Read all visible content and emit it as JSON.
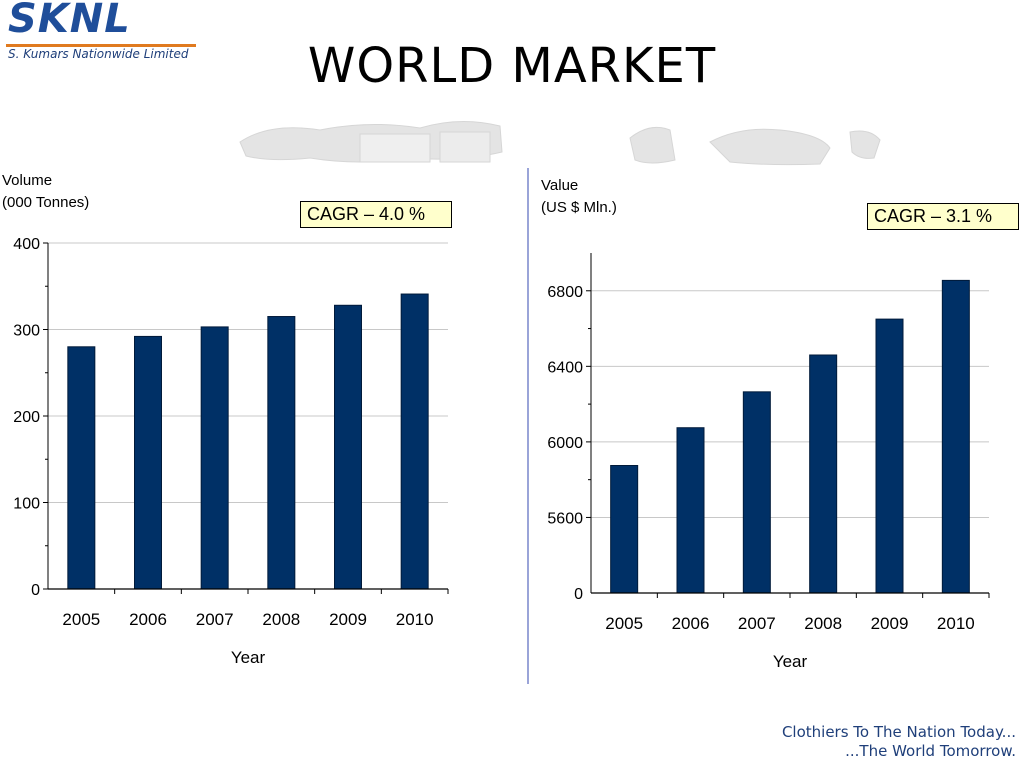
{
  "logo": {
    "text": "SKNL",
    "subtitle": "S. Kumars Nationwide Limited"
  },
  "page_title": "WORLD MARKET",
  "tagline": {
    "line1": "Clothiers To The Nation Today...",
    "line2": "...The World Tomorrow."
  },
  "colors": {
    "bar": "#003066",
    "grid": "#c8c8c8",
    "cagr_bg": "#ffffcc",
    "divider": "#9aa4d8",
    "brand": "#1f4e9a"
  },
  "chart_data": [
    {
      "type": "bar",
      "ylabel_line1": "Volume",
      "ylabel_line2": "(000 Tonnes)",
      "xlabel": "Year",
      "annotation": "CAGR – 4.0 %",
      "categories": [
        "2005",
        "2006",
        "2007",
        "2008",
        "2009",
        "2010"
      ],
      "values": [
        280,
        292,
        303,
        315,
        328,
        341
      ],
      "ylim": [
        0,
        400
      ],
      "yticks": [
        0,
        100,
        200,
        300,
        400
      ],
      "grid": true
    },
    {
      "type": "bar",
      "ylabel_line1": "Value",
      "ylabel_line2": "(US $ Mln.)",
      "xlabel": "Year",
      "annotation": "CAGR – 3.1 %",
      "categories": [
        "2005",
        "2006",
        "2007",
        "2008",
        "2009",
        "2010"
      ],
      "values": [
        5875,
        6075,
        6265,
        6460,
        6650,
        6855
      ],
      "ylim": [
        5200,
        7000
      ],
      "yticks": [
        5600,
        6000,
        6400,
        6800
      ],
      "base_label": "0",
      "grid": true
    }
  ]
}
